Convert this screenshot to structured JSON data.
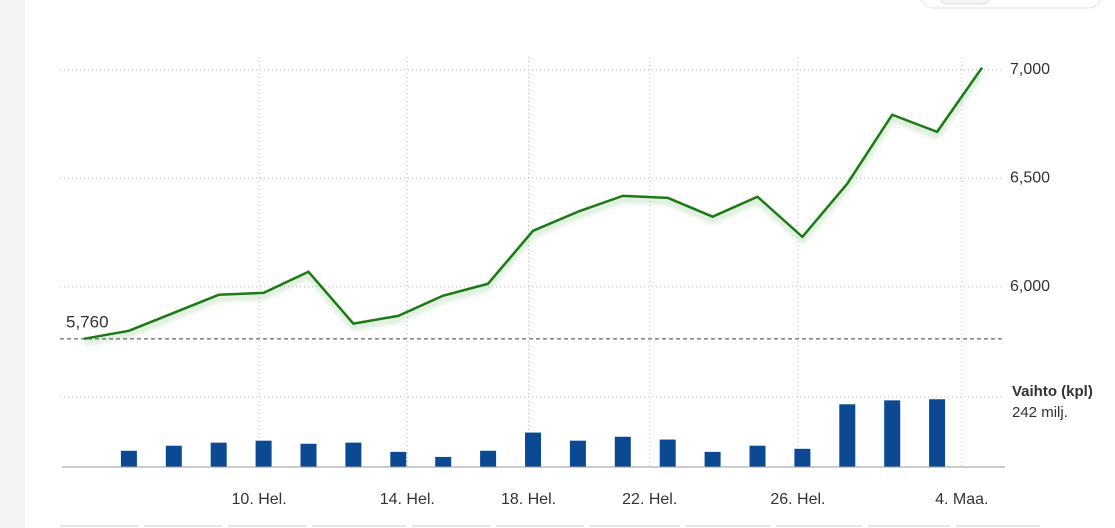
{
  "chart_data": {
    "type": "line",
    "x": [
      0,
      1,
      2,
      3,
      4,
      5,
      6,
      7,
      8,
      9,
      10,
      11,
      12,
      13,
      14,
      15,
      16,
      17,
      18,
      19,
      20
    ],
    "xlim": [
      0,
      20
    ],
    "xticks": [
      {
        "value": 3.9,
        "label": "10. Hel."
      },
      {
        "value": 7.2,
        "label": "14. Hel."
      },
      {
        "value": 9.9,
        "label": "18. Hel."
      },
      {
        "value": 12.6,
        "label": "22. Hel."
      },
      {
        "value": 15.9,
        "label": "26. Hel."
      },
      {
        "value": 19.55,
        "label": "4. Maa."
      }
    ],
    "values": [
      5760,
      5797,
      5880,
      5963,
      5972,
      6069,
      5830,
      5866,
      5959,
      6014,
      6258,
      6346,
      6419,
      6410,
      6323,
      6415,
      6230,
      6475,
      6793,
      6714,
      7010
    ],
    "color": "#1a7a12",
    "ylim": [
      5750,
      7050
    ],
    "yticks": [
      {
        "value": 6000,
        "label": "6,000"
      },
      {
        "value": 6500,
        "label": "6,500"
      },
      {
        "value": 7000,
        "label": "7,000"
      }
    ],
    "grid": true,
    "reference": {
      "value": 5760,
      "label": "5,760"
    },
    "volume": {
      "label": "Vaihto (kpl)",
      "value_text": "242 milj.",
      "color": "#0b4a92",
      "ylim": [
        0,
        250
      ],
      "values": [
        null,
        58,
        76,
        87,
        94,
        83,
        87,
        54,
        36,
        58,
        123,
        94,
        108,
        98,
        54,
        76,
        65,
        224,
        238,
        242,
        null
      ]
    }
  }
}
